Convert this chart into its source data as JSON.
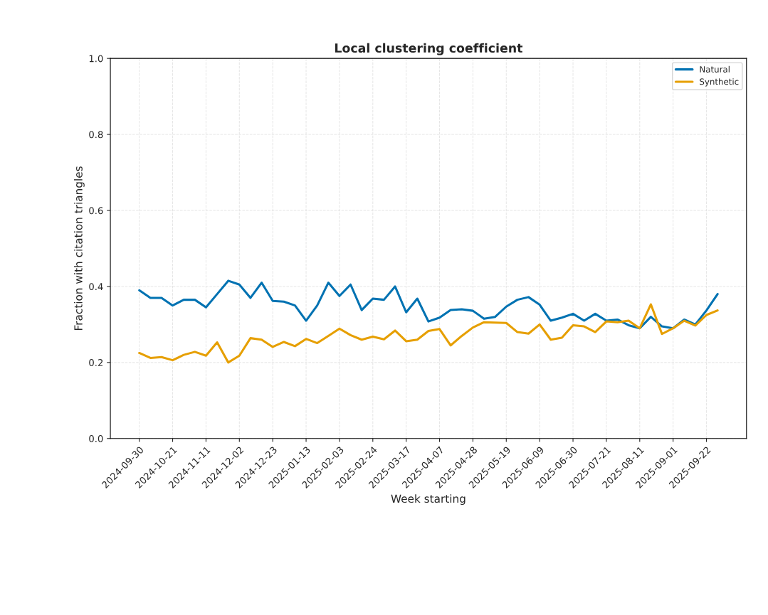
{
  "chart_data": {
    "type": "line",
    "title": "Local clustering coefficient",
    "xlabel": "Week starting",
    "ylabel": "Fraction with citation triangles",
    "categories": [
      "2024-09-30",
      null,
      null,
      "2024-10-21",
      null,
      null,
      "2024-11-11",
      null,
      null,
      "2024-12-02",
      null,
      null,
      "2024-12-23",
      null,
      null,
      "2025-01-13",
      null,
      null,
      "2025-02-03",
      null,
      null,
      "2025-02-24",
      null,
      null,
      "2025-03-17",
      null,
      null,
      "2025-04-07",
      null,
      null,
      "2025-04-28",
      null,
      null,
      "2025-05-19",
      null,
      null,
      "2025-06-09",
      null,
      null,
      "2025-06-30",
      null,
      null,
      "2025-07-21",
      null,
      null,
      "2025-08-11",
      null,
      null,
      "2025-09-01",
      null,
      null,
      "2025-09-22",
      null
    ],
    "series": [
      {
        "name": "Natural",
        "color": "#0072b2",
        "values": [
          0.39,
          0.37,
          0.37,
          0.35,
          0.365,
          0.365,
          0.345,
          0.38,
          0.415,
          0.405,
          0.37,
          0.41,
          0.362,
          0.36,
          0.35,
          0.31,
          0.35,
          0.41,
          0.375,
          0.405,
          0.338,
          0.368,
          0.365,
          0.4,
          0.332,
          0.368,
          0.308,
          0.318,
          0.338,
          0.34,
          0.336,
          0.315,
          0.32,
          0.347,
          0.365,
          0.372,
          0.352,
          0.31,
          0.318,
          0.328,
          0.31,
          0.328,
          0.31,
          0.313,
          0.298,
          0.29,
          0.32,
          0.295,
          0.29,
          0.313,
          0.3,
          0.337,
          0.38
        ]
      },
      {
        "name": "Synthetic",
        "color": "#e69f00",
        "values": [
          0.225,
          0.212,
          0.214,
          0.206,
          0.22,
          0.228,
          0.218,
          0.253,
          0.2,
          0.218,
          0.264,
          0.26,
          0.241,
          0.254,
          0.243,
          0.262,
          0.251,
          0.27,
          0.289,
          0.272,
          0.26,
          0.268,
          0.261,
          0.284,
          0.256,
          0.26,
          0.283,
          0.288,
          0.245,
          0.27,
          0.292,
          0.306,
          0.305,
          0.304,
          0.28,
          0.276,
          0.3,
          0.26,
          0.265,
          0.298,
          0.295,
          0.28,
          0.308,
          0.306,
          0.31,
          0.29,
          0.353,
          0.275,
          0.29,
          0.31,
          0.297,
          0.325,
          0.337
        ]
      }
    ],
    "ylim": [
      0,
      1
    ],
    "yticks": [
      {
        "value": 0,
        "label": "0.0"
      },
      0.2,
      0.4,
      0.6,
      0.8,
      {
        "value": 1,
        "label": "1.0"
      }
    ],
    "grid": true,
    "legend": "top right",
    "line_style": "solid",
    "marker": "none"
  }
}
